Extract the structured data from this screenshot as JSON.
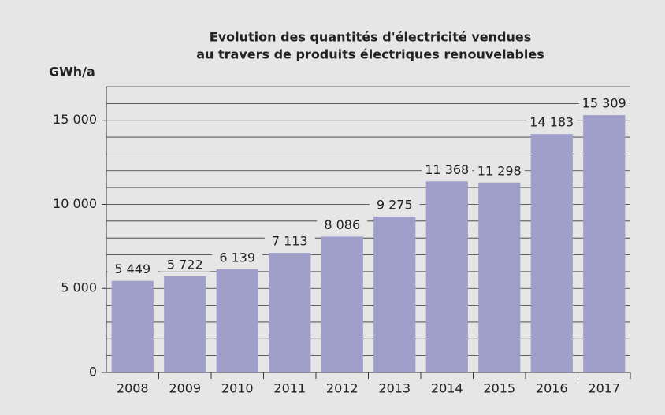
{
  "chart_data": {
    "type": "bar",
    "title": [
      "Evolution des quantités d'électricité vendues",
      "au travers de produits électriques renouvelables"
    ],
    "y_label": "GWh/a",
    "categories": [
      "2008",
      "2009",
      "2010",
      "2011",
      "2012",
      "2013",
      "2014",
      "2015",
      "2016",
      "2017"
    ],
    "values": [
      5449,
      5722,
      6139,
      7113,
      8086,
      9275,
      11368,
      11298,
      14183,
      15309
    ],
    "value_labels": [
      "5 449",
      "5 722",
      "6 139",
      "7 113",
      "8 086",
      "9 275",
      "11 368",
      "11 298",
      "14 183",
      "15 309"
    ],
    "color": "#a09fca",
    "ylim": [
      0,
      17000
    ],
    "yticks": [
      0,
      {
        "value": 5000,
        "label": "5 000"
      },
      {
        "value": 10000,
        "label": "10 000"
      },
      {
        "value": 15000,
        "label": "15 000"
      }
    ],
    "ygrid": [
      1000,
      2000,
      3000,
      4000,
      5000,
      6000,
      7000,
      8000,
      9000,
      10000,
      11000,
      12000,
      13000,
      14000,
      15000,
      16000,
      17000
    ],
    "grid": true
  }
}
